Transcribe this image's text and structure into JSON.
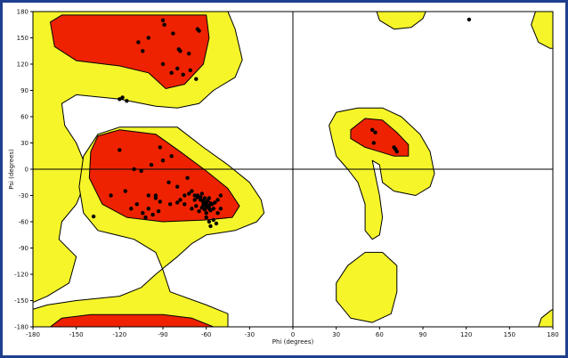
{
  "chart_data": {
    "type": "scatter",
    "title": "",
    "xlabel": "Phi (degrees)",
    "ylabel": "Psi (degrees)",
    "xlim": [
      -180,
      180
    ],
    "ylim": [
      -180,
      180
    ],
    "xticks": [
      -180,
      -150,
      -120,
      -90,
      -60,
      -30,
      0,
      30,
      60,
      90,
      120,
      150,
      180
    ],
    "yticks": [
      180,
      150,
      120,
      90,
      60,
      30,
      0,
      -30,
      -60,
      -90,
      -120,
      -150,
      -180
    ],
    "grid": false,
    "zero_lines": true,
    "colors": {
      "core": "#ee2200",
      "allowed": "#f5f52a",
      "disallowed": "#ffffff",
      "contour": "#000000",
      "points": "#000000",
      "frame_border": "#1f3f8f"
    },
    "regions": [
      {
        "name": "core",
        "polygon": [
          [
            -168,
            168
          ],
          [
            -160,
            176
          ],
          [
            -60,
            176
          ],
          [
            -58,
            150
          ],
          [
            -62,
            120
          ],
          [
            -75,
            97
          ],
          [
            -88,
            92
          ],
          [
            -100,
            110
          ],
          [
            -120,
            118
          ],
          [
            -150,
            124
          ],
          [
            -165,
            140
          ]
        ]
      },
      {
        "name": "core",
        "polygon": [
          [
            -140,
            20
          ],
          [
            -135,
            38
          ],
          [
            -120,
            45
          ],
          [
            -95,
            40
          ],
          [
            -78,
            20
          ],
          [
            -60,
            -2
          ],
          [
            -45,
            -22
          ],
          [
            -37,
            -42
          ],
          [
            -42,
            -55
          ],
          [
            -60,
            -58
          ],
          [
            -90,
            -60
          ],
          [
            -115,
            -55
          ],
          [
            -132,
            -40
          ],
          [
            -141,
            -10
          ]
        ]
      },
      {
        "name": "core",
        "polygon": [
          [
            -168,
            -180
          ],
          [
            -160,
            -170
          ],
          [
            -140,
            -166
          ],
          [
            -90,
            -166
          ],
          [
            -70,
            -170
          ],
          [
            -55,
            -180
          ]
        ]
      },
      {
        "name": "core",
        "polygon": [
          [
            40,
            45
          ],
          [
            50,
            58
          ],
          [
            62,
            56
          ],
          [
            72,
            42
          ],
          [
            80,
            28
          ],
          [
            80,
            15
          ],
          [
            70,
            15
          ],
          [
            60,
            20
          ],
          [
            50,
            25
          ],
          [
            40,
            35
          ]
        ]
      },
      {
        "name": "allowed",
        "polygon": [
          [
            -180,
            180
          ],
          [
            -45,
            180
          ],
          [
            -40,
            160
          ],
          [
            -35,
            125
          ],
          [
            -40,
            105
          ],
          [
            -55,
            90
          ],
          [
            -65,
            75
          ],
          [
            -80,
            70
          ],
          [
            -95,
            72
          ],
          [
            -120,
            80
          ],
          [
            -150,
            85
          ],
          [
            -160,
            75
          ],
          [
            -158,
            50
          ],
          [
            -150,
            30
          ],
          [
            -145,
            10
          ],
          [
            -145,
            -20
          ],
          [
            -150,
            -40
          ],
          [
            -160,
            -60
          ],
          [
            -162,
            -80
          ],
          [
            -150,
            -100
          ],
          [
            -155,
            -130
          ],
          [
            -170,
            -145
          ],
          [
            -180,
            -152
          ]
        ]
      },
      {
        "name": "allowed",
        "polygon": [
          [
            -120,
            48
          ],
          [
            -80,
            48
          ],
          [
            -62,
            25
          ],
          [
            -45,
            5
          ],
          [
            -30,
            -15
          ],
          [
            -22,
            -35
          ],
          [
            -20,
            -50
          ],
          [
            -25,
            -60
          ],
          [
            -40,
            -70
          ],
          [
            -60,
            -75
          ],
          [
            -70,
            -85
          ],
          [
            -80,
            -100
          ],
          [
            -95,
            -120
          ],
          [
            -105,
            -135
          ],
          [
            -120,
            -145
          ],
          [
            -150,
            -150
          ],
          [
            -170,
            -155
          ],
          [
            -180,
            -160
          ],
          [
            -180,
            -180
          ],
          [
            -45,
            -180
          ],
          [
            -45,
            -165
          ],
          [
            -60,
            -155
          ],
          [
            -85,
            -140
          ],
          [
            -90,
            -115
          ],
          [
            -95,
            -95
          ],
          [
            -110,
            -80
          ],
          [
            -135,
            -70
          ],
          [
            -145,
            -50
          ],
          [
            -148,
            -20
          ],
          [
            -145,
            15
          ],
          [
            -135,
            40
          ]
        ]
      },
      {
        "name": "allowed",
        "polygon": [
          [
            25,
            50
          ],
          [
            30,
            65
          ],
          [
            45,
            70
          ],
          [
            62,
            70
          ],
          [
            75,
            60
          ],
          [
            88,
            40
          ],
          [
            95,
            20
          ],
          [
            98,
            -5
          ],
          [
            95,
            -20
          ],
          [
            85,
            -30
          ],
          [
            70,
            -25
          ],
          [
            62,
            -15
          ],
          [
            60,
            5
          ],
          [
            55,
            10
          ],
          [
            60,
            -30
          ],
          [
            62,
            -55
          ],
          [
            60,
            -75
          ],
          [
            55,
            -80
          ],
          [
            50,
            -70
          ],
          [
            50,
            -40
          ],
          [
            45,
            -15
          ],
          [
            38,
            0
          ],
          [
            30,
            15
          ],
          [
            27,
            35
          ]
        ]
      },
      {
        "name": "allowed",
        "polygon": [
          [
            30,
            -130
          ],
          [
            38,
            -110
          ],
          [
            50,
            -95
          ],
          [
            62,
            -95
          ],
          [
            72,
            -110
          ],
          [
            72,
            -140
          ],
          [
            68,
            -165
          ],
          [
            55,
            -175
          ],
          [
            40,
            -170
          ],
          [
            30,
            -150
          ]
        ]
      },
      {
        "name": "allowed",
        "polygon": [
          [
            58,
            180
          ],
          [
            60,
            170
          ],
          [
            70,
            160
          ],
          [
            82,
            162
          ],
          [
            90,
            172
          ],
          [
            92,
            180
          ]
        ]
      },
      {
        "name": "allowed",
        "polygon": [
          [
            168,
            180
          ],
          [
            165,
            165
          ],
          [
            170,
            145
          ],
          [
            178,
            138
          ],
          [
            180,
            138
          ],
          [
            180,
            180
          ]
        ]
      },
      {
        "name": "allowed",
        "polygon": [
          [
            170,
            -180
          ],
          [
            172,
            -170
          ],
          [
            178,
            -162
          ],
          [
            180,
            -160
          ],
          [
            180,
            -180
          ]
        ]
      }
    ],
    "series": [
      {
        "x": [
          -90,
          -89,
          -83,
          -100,
          -107,
          -104,
          -79,
          -78,
          -72,
          -66,
          -65,
          -90,
          -80,
          -84,
          -76,
          -71,
          -67,
          -120,
          -118,
          -115,
          -92,
          -84,
          -90,
          -98,
          -105,
          -110,
          -116,
          -126,
          -120,
          -100,
          -95,
          -92,
          -85,
          -80,
          -78,
          -75,
          -72,
          -70,
          -68,
          -66,
          -64,
          -62,
          -60,
          -58,
          -56,
          -54,
          -52,
          -50,
          -75,
          -70,
          -67,
          -65,
          -63,
          -61,
          -60,
          -59,
          -57,
          -55,
          -68,
          -64,
          -62,
          -60,
          -58,
          -66,
          -63,
          -61,
          -59,
          -57,
          -62,
          -60,
          -58,
          -73,
          -80,
          -86,
          -95,
          -100,
          -108,
          -112,
          -104,
          -102,
          -97,
          -93,
          -60,
          -58,
          -57,
          -55,
          -53,
          -52,
          -50,
          -138,
          55,
          57,
          56,
          70,
          72,
          71,
          122
        ],
        "y": [
          170,
          165,
          155,
          150,
          145,
          135,
          137,
          135,
          132,
          160,
          158,
          120,
          115,
          110,
          108,
          113,
          103,
          80,
          82,
          78,
          25,
          15,
          10,
          5,
          -2,
          0,
          -25,
          -30,
          22,
          -30,
          -33,
          -37,
          -40,
          -38,
          -35,
          -30,
          -28,
          -25,
          -30,
          -32,
          -35,
          -38,
          -40,
          -42,
          -40,
          -38,
          -35,
          -30,
          -40,
          -45,
          -42,
          -48,
          -44,
          -46,
          -50,
          -43,
          -47,
          -45,
          -35,
          -32,
          -36,
          -38,
          -33,
          -30,
          -28,
          -33,
          -36,
          -39,
          -41,
          -43,
          -45,
          -10,
          -20,
          -15,
          -30,
          -45,
          -40,
          -45,
          -50,
          -55,
          -52,
          -48,
          -55,
          -60,
          -65,
          -58,
          -62,
          -50,
          -45,
          -54,
          45,
          42,
          30,
          25,
          20,
          23,
          171
        ]
      }
    ]
  }
}
